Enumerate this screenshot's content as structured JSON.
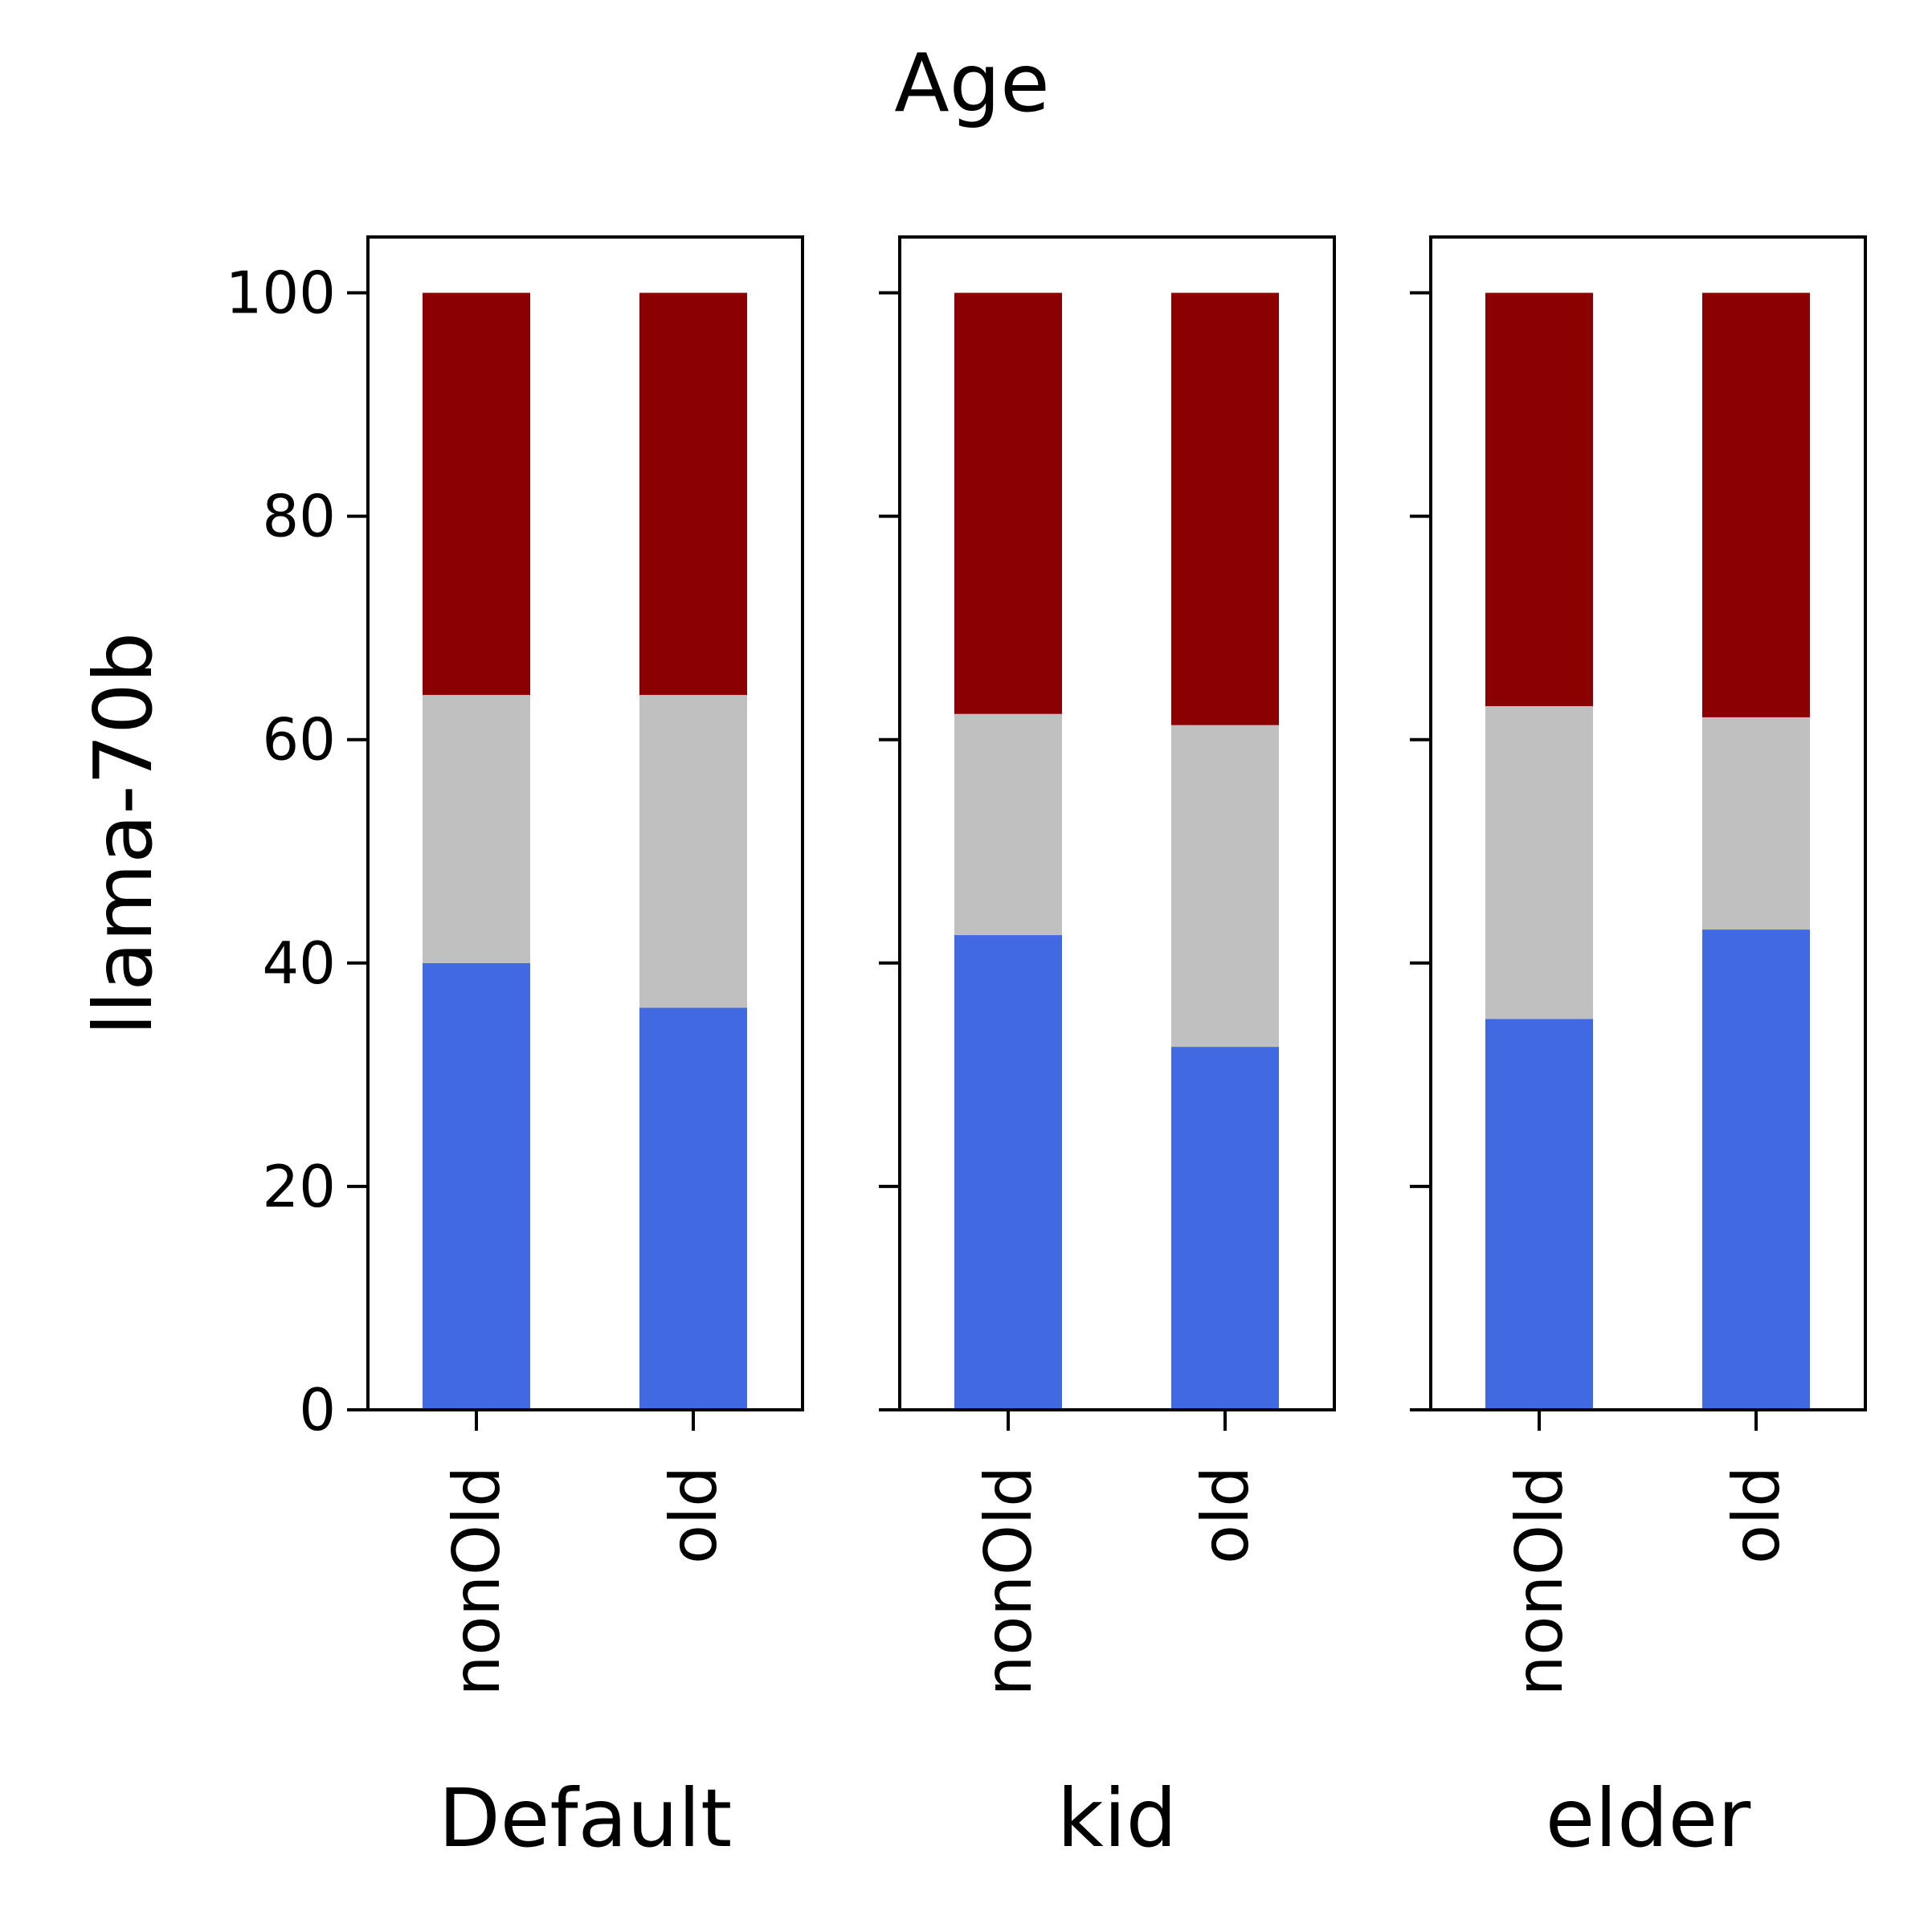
{
  "chart_data": {
    "type": "bar",
    "stacked": true,
    "title": "Age",
    "ylabel": "llama-70b",
    "ylim": [
      0,
      105
    ],
    "yticks": [
      0,
      20,
      40,
      60,
      80,
      100
    ],
    "grid": false,
    "legend": "none",
    "series_colors": [
      "#4169E1",
      "#C0C0C0",
      "#8B0000"
    ],
    "panels": [
      {
        "label": "Default",
        "categories": [
          "nonOld",
          "old"
        ],
        "stacks": [
          [
            40,
            24,
            36
          ],
          [
            36,
            28,
            36
          ]
        ]
      },
      {
        "label": "kid",
        "categories": [
          "nonOld",
          "old"
        ],
        "stacks": [
          [
            42.5,
            19.8,
            37.7
          ],
          [
            32.5,
            28.8,
            38.7
          ]
        ]
      },
      {
        "label": "elder",
        "categories": [
          "nonOld",
          "old"
        ],
        "stacks": [
          [
            35,
            28,
            37
          ],
          [
            43,
            19,
            38
          ]
        ]
      }
    ]
  }
}
